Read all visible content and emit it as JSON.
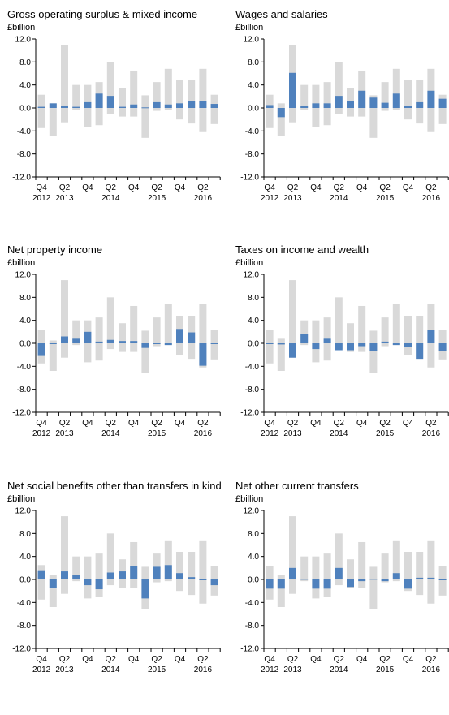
{
  "colors": {
    "range": "#d9d9d9",
    "value": "#4f81bd",
    "axis": "#000000"
  },
  "shared_axes": {
    "yticks": [
      12.0,
      8.0,
      4.0,
      0.0,
      -4.0,
      -8.0,
      -12.0
    ],
    "ytick_labels": [
      "12.0",
      "8.0",
      "4.0",
      "0.0",
      "-4.0",
      "-8.0",
      "-12.0"
    ],
    "ylim": [
      -12,
      12
    ],
    "quarters": [
      "2012 Q4",
      "2013 Q1",
      "2013 Q2",
      "2013 Q3",
      "2013 Q4",
      "2014 Q1",
      "2014 Q2",
      "2014 Q3",
      "2014 Q4",
      "2015 Q1",
      "2015 Q2",
      "2015 Q3",
      "2015 Q4",
      "2016 Q1",
      "2016 Q2",
      "2016 Q3"
    ],
    "xtick_top": [
      "Q4",
      "Q2",
      "Q4",
      "Q2",
      "Q4",
      "Q2",
      "Q4",
      "Q2"
    ],
    "xtick_bottom": [
      "2012",
      "2013",
      "",
      "2014",
      "",
      "2015",
      "",
      "2016"
    ]
  },
  "chart_data": [
    {
      "type": "bar",
      "title": "Gross operating surplus & mixed income",
      "ylabel": "£billion",
      "range_upper": [
        2.3,
        0.8,
        11.0,
        4.0,
        4.0,
        4.5,
        8.0,
        3.5,
        6.5,
        2.2,
        4.5,
        6.8,
        4.8,
        4.8,
        6.8,
        2.3
      ],
      "range_lower": [
        -3.5,
        -4.8,
        -2.5,
        -0.3,
        -3.3,
        -3.0,
        -1.0,
        -1.5,
        -1.5,
        -5.2,
        -0.5,
        -0.3,
        -2.0,
        -2.7,
        -4.2,
        -2.8
      ],
      "values": [
        0.2,
        0.8,
        0.3,
        0.2,
        1.0,
        2.5,
        2.1,
        0.2,
        0.6,
        0.1,
        1.0,
        0.6,
        0.8,
        1.2,
        1.2,
        0.7
      ]
    },
    {
      "type": "bar",
      "title": "Wages and salaries",
      "ylabel": "£billion",
      "range_upper": [
        2.3,
        0.8,
        11.0,
        4.0,
        4.0,
        4.5,
        8.0,
        3.5,
        6.5,
        2.2,
        4.5,
        6.8,
        4.8,
        4.8,
        6.8,
        2.3
      ],
      "range_lower": [
        -3.5,
        -4.8,
        -2.5,
        -0.3,
        -3.3,
        -3.0,
        -1.0,
        -1.5,
        -1.5,
        -5.2,
        -0.5,
        -0.3,
        -2.0,
        -2.7,
        -4.2,
        -2.8
      ],
      "values": [
        0.5,
        -1.6,
        6.1,
        0.3,
        0.8,
        0.8,
        2.1,
        1.2,
        3.0,
        1.8,
        0.9,
        2.5,
        0.3,
        1.0,
        3.0,
        1.6
      ]
    },
    {
      "type": "bar",
      "title": "Net property income",
      "ylabel": "£billion",
      "range_upper": [
        2.3,
        0.5,
        11.0,
        4.0,
        4.0,
        4.5,
        8.0,
        3.5,
        6.5,
        2.2,
        4.5,
        6.8,
        4.8,
        4.8,
        6.8,
        2.3
      ],
      "range_lower": [
        -3.5,
        -4.8,
        -2.5,
        -0.3,
        -3.3,
        -3.0,
        -1.0,
        -1.5,
        -1.5,
        -5.2,
        -0.5,
        -0.3,
        -2.0,
        -2.7,
        -4.2,
        -2.8
      ],
      "values": [
        -2.2,
        0.0,
        1.2,
        0.8,
        2.0,
        0.3,
        0.6,
        0.4,
        0.4,
        -0.8,
        -0.1,
        -0.3,
        2.5,
        1.9,
        -3.9,
        -0.1
      ]
    },
    {
      "type": "bar",
      "title": "Taxes on income and wealth",
      "ylabel": "£billion",
      "range_upper": [
        2.3,
        0.8,
        11.0,
        4.0,
        4.0,
        4.5,
        8.0,
        3.5,
        6.5,
        2.2,
        4.5,
        6.8,
        4.8,
        4.8,
        6.8,
        2.3
      ],
      "range_lower": [
        -3.5,
        -4.8,
        -2.5,
        -0.3,
        -3.3,
        -3.0,
        -1.0,
        -1.5,
        -1.5,
        -5.2,
        -0.5,
        -0.3,
        -2.0,
        -2.7,
        -4.2,
        -2.8
      ],
      "values": [
        0.0,
        -0.2,
        -2.5,
        1.6,
        -1.0,
        0.8,
        -1.2,
        -1.2,
        -0.5,
        -1.3,
        0.3,
        -0.3,
        -0.7,
        -2.7,
        2.4,
        -1.3
      ]
    },
    {
      "type": "bar",
      "title": "Net social benefits other than transfers in kind",
      "ylabel": "£billion",
      "range_upper": [
        2.5,
        0.8,
        11.0,
        4.0,
        4.0,
        4.5,
        8.0,
        3.5,
        6.5,
        2.2,
        4.5,
        6.8,
        4.8,
        4.8,
        6.8,
        2.3
      ],
      "range_lower": [
        -3.5,
        -4.8,
        -2.5,
        -0.3,
        -3.3,
        -3.0,
        -1.0,
        -1.5,
        -1.5,
        -5.2,
        -0.5,
        -0.3,
        -2.0,
        -2.7,
        -4.2,
        -2.8
      ],
      "values": [
        1.6,
        -1.5,
        1.4,
        0.8,
        -1.0,
        -1.7,
        1.2,
        1.4,
        2.4,
        -3.3,
        2.2,
        2.5,
        1.1,
        0.4,
        0.0,
        -1.0
      ]
    },
    {
      "type": "bar",
      "title": "Net other current transfers",
      "ylabel": "£billion",
      "range_upper": [
        2.3,
        0.8,
        11.0,
        4.0,
        4.0,
        4.5,
        8.0,
        3.5,
        6.5,
        2.2,
        4.5,
        6.8,
        4.8,
        4.8,
        6.8,
        2.3
      ],
      "range_lower": [
        -3.5,
        -4.8,
        -2.5,
        -0.3,
        -3.3,
        -3.0,
        -1.0,
        -1.5,
        -1.5,
        -5.2,
        -0.5,
        -0.3,
        -2.0,
        -2.7,
        -4.2,
        -2.8
      ],
      "values": [
        -1.6,
        -1.6,
        2.0,
        0.1,
        -1.6,
        -1.6,
        2.0,
        -1.3,
        -0.3,
        0.1,
        -0.3,
        1.1,
        -1.6,
        0.3,
        0.3,
        -0.1
      ]
    }
  ]
}
